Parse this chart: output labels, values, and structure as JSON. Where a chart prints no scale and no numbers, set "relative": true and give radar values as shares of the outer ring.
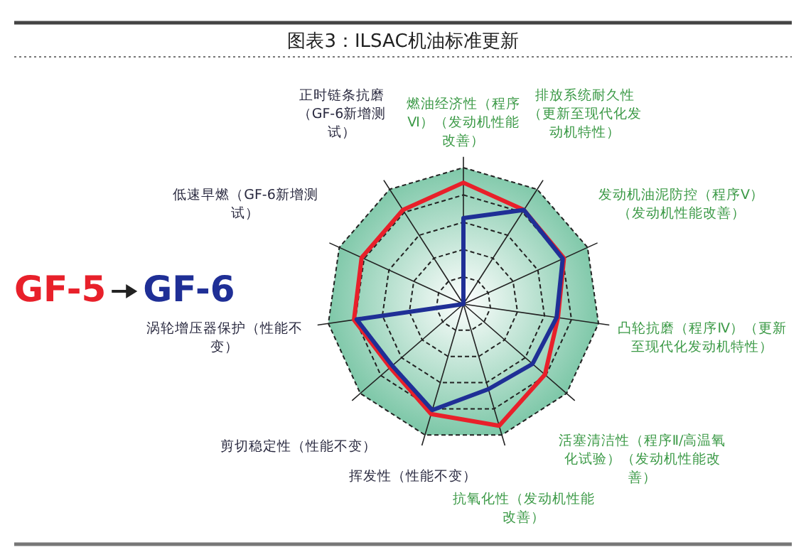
{
  "chart_data": {
    "type": "radar",
    "title": "图表3：ILSAC机油标准更新",
    "relative": true,
    "legend": "left",
    "categories": [
      "燃油经济性（程序Ⅵ）（发动机性能改善）",
      "排放系统耐久性（更新至现代化发动机特性）",
      "发动机油泥防控（程序Ⅴ）（发动机性能改善）",
      "凸轮抗磨（程序Ⅳ）（更新至现代化发动机特性）",
      "活塞清洁性（程序Ⅱ/高温氧化试验）（发动机性能改善）",
      "抗氧化性（发动机性能改善）",
      "挥发性（性能不变）",
      "剪切稳定性（性能不变）",
      "涡轮增压器保护（性能不变）",
      "低速早燃（GF-6新增测试）",
      "正时链条抗磨（GF-6新增测试）"
    ],
    "series": [
      {
        "name": "GF-5",
        "color": "#e8202a",
        "values": [
          0.89,
          0.82,
          0.81,
          0.7,
          0.79,
          0.93,
          0.84,
          0.71,
          0.81,
          0.82,
          0.82
        ]
      },
      {
        "name": "GF-6",
        "color": "#1f2f96",
        "values": [
          0.63,
          0.82,
          0.8,
          0.69,
          0.67,
          0.65,
          0.81,
          0.69,
          0.79,
          0,
          0
        ]
      }
    ]
  }
}
